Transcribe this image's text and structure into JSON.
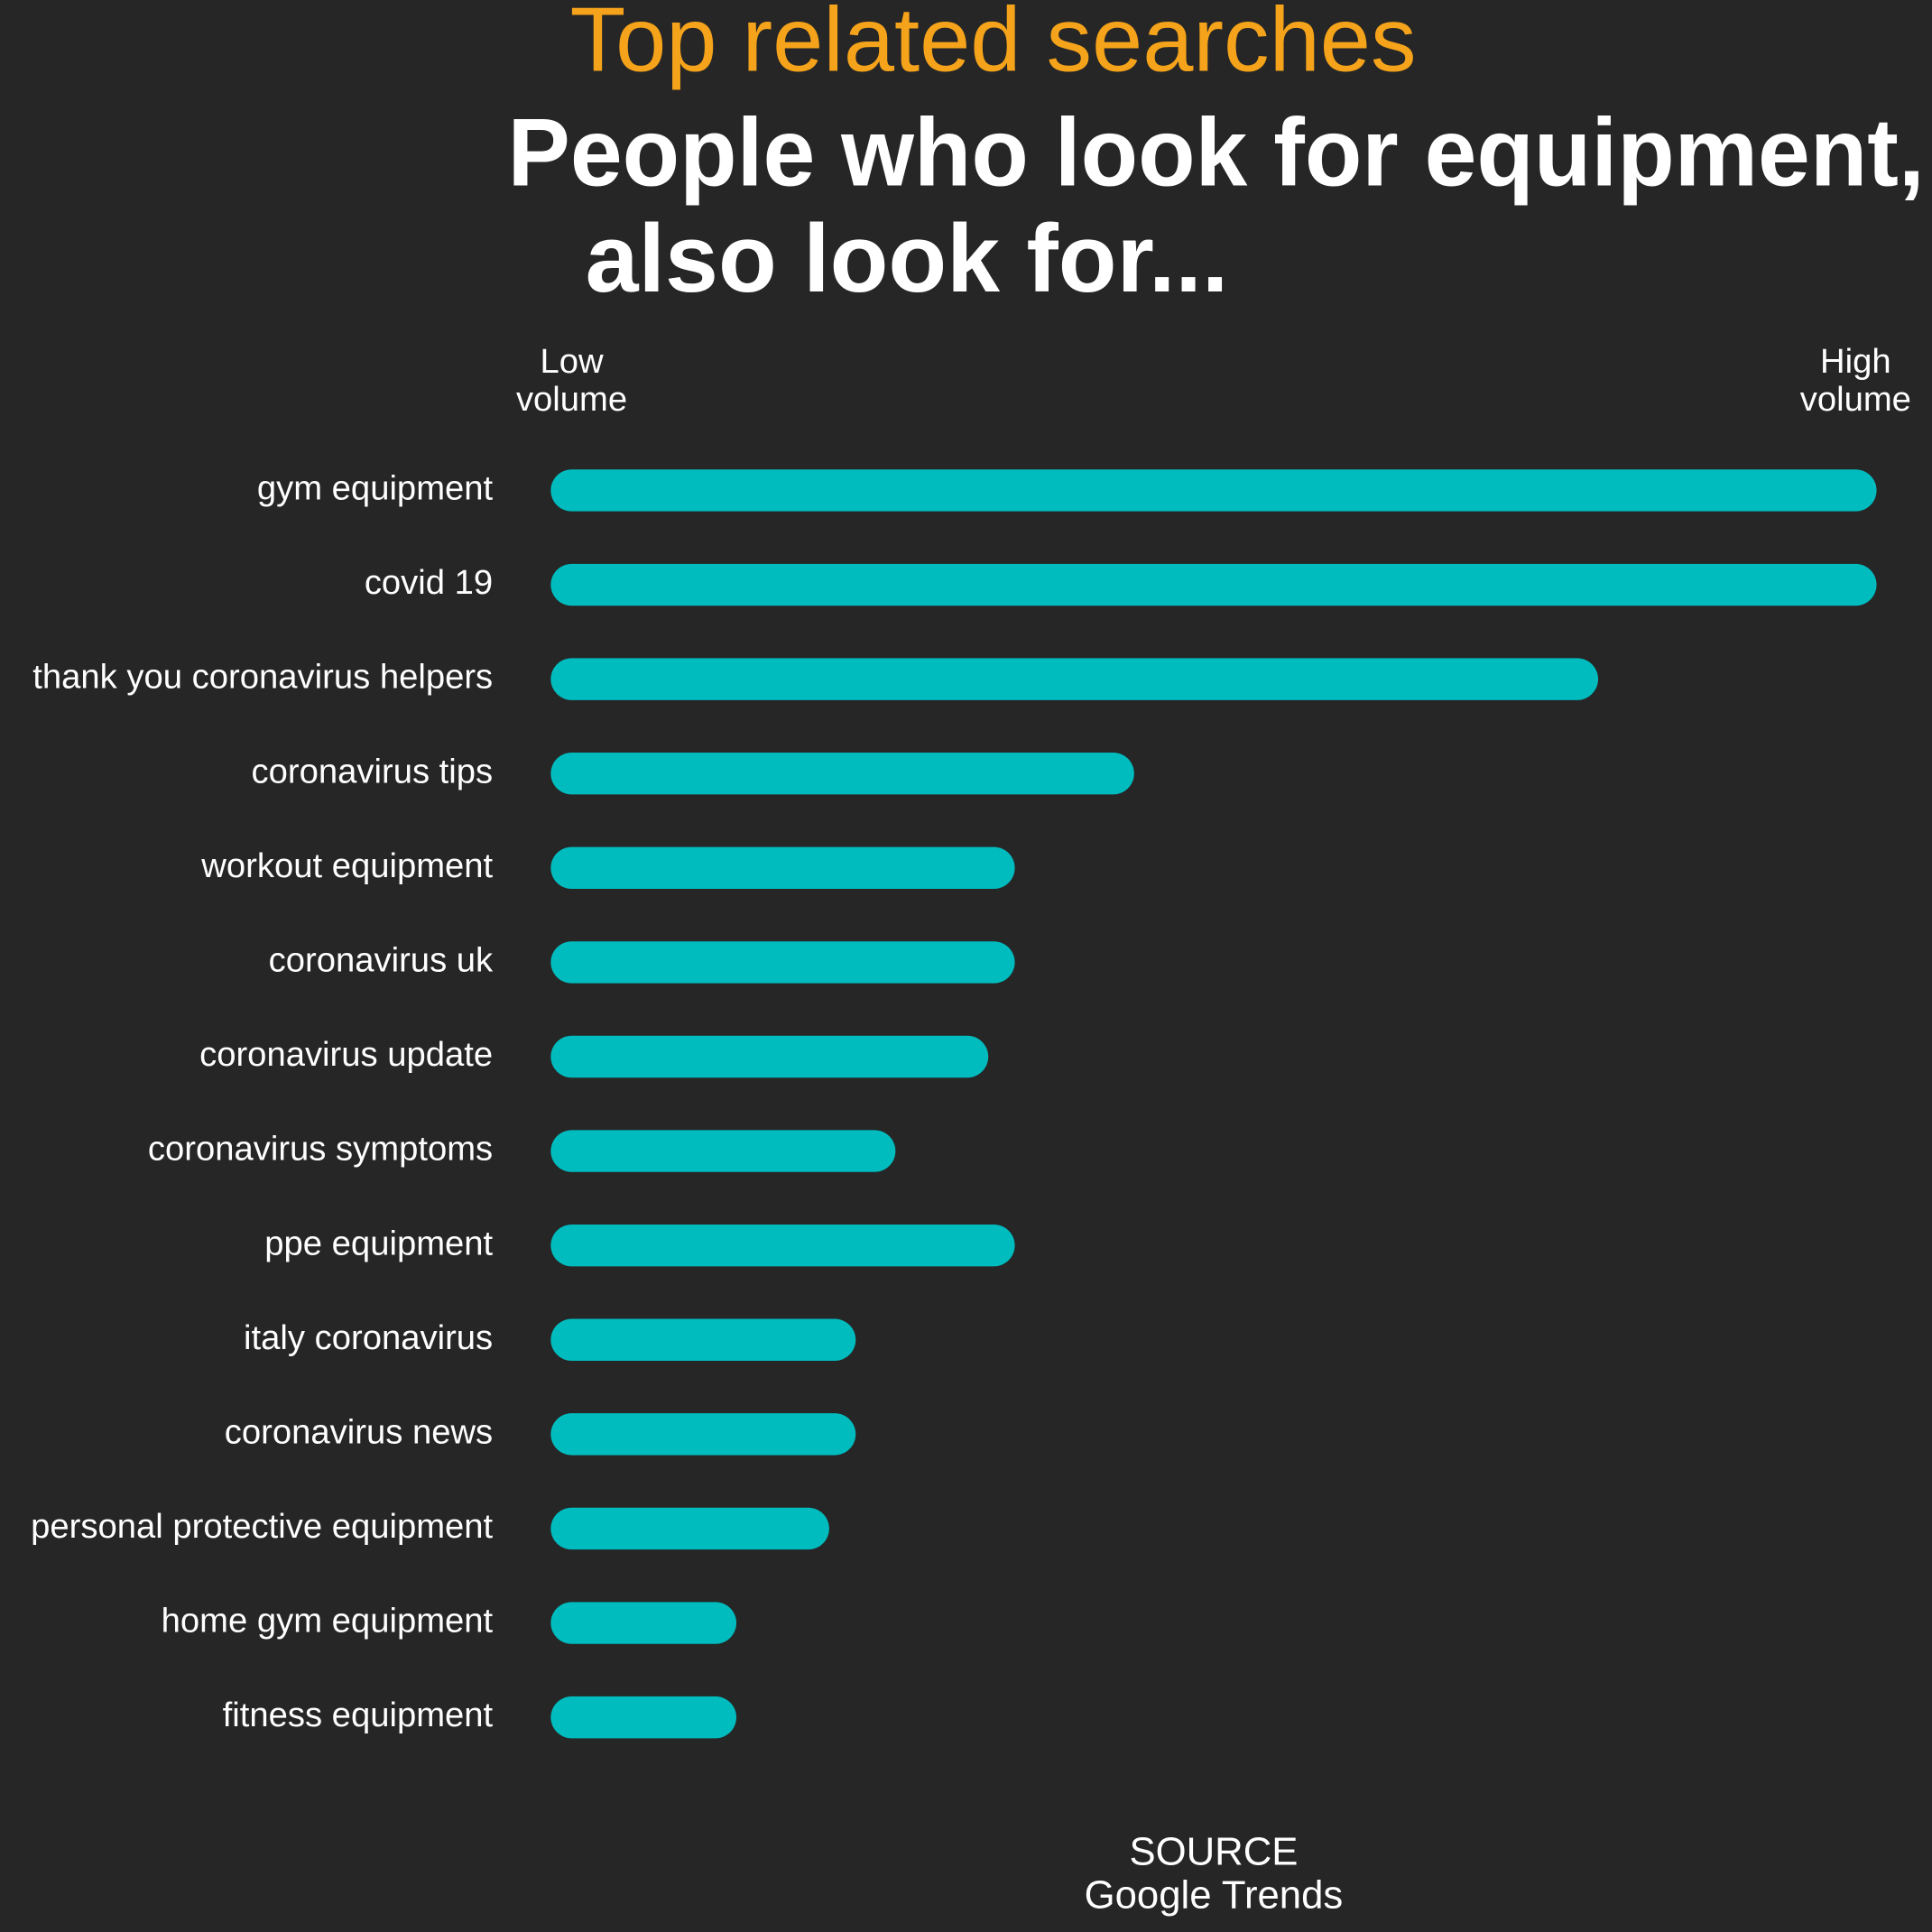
{
  "chart_data": {
    "type": "bar",
    "orientation": "horizontal",
    "title": "Top related searches",
    "subtitle": [
      "People who look for equipment,",
      "also look for..."
    ],
    "axis_low_label": [
      "Low",
      "volume"
    ],
    "axis_high_label": [
      "High",
      "volume"
    ],
    "categories": [
      "gym equipment",
      "covid 19",
      "thank you coronavirus helpers",
      "coronavirus tips",
      "workout equipment",
      "coronavirus uk",
      "coronavirus update",
      "coronavirus symptoms",
      "ppe equipment",
      "italy coronavirus",
      "coronavirus news",
      "personal protective equipment",
      "home gym equipment",
      "fitness equipment"
    ],
    "values": [
      100,
      100,
      79,
      44,
      35,
      35,
      33,
      26,
      35,
      23,
      23,
      21,
      14,
      14
    ],
    "color": "#00bcbf",
    "xlim": [
      0,
      100
    ],
    "source_label": "SOURCE",
    "source": "Google Trends"
  }
}
